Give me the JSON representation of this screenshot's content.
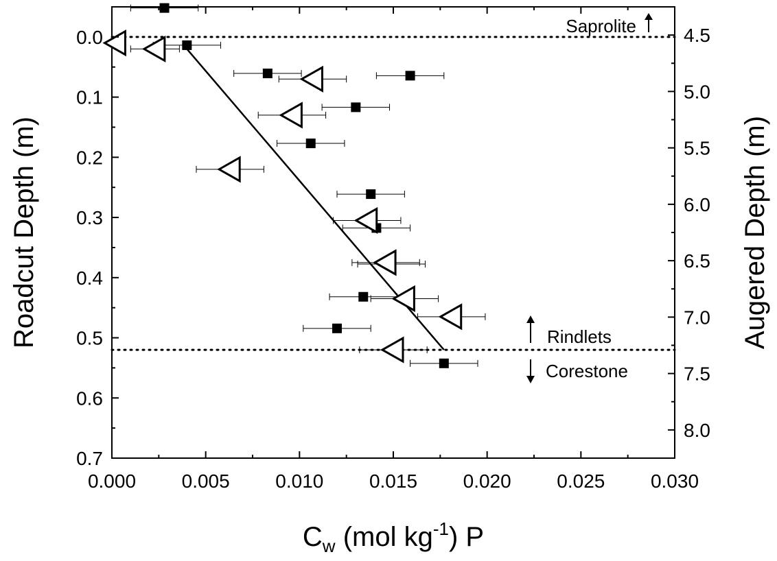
{
  "chart_data": {
    "type": "scatter",
    "xlabel": {
      "main": "C",
      "sub": "w",
      "mid": " (mol kg",
      "sup": "-1",
      "end": ") P"
    },
    "ylabel": "Roadcut Depth (m)",
    "y2label": "Augered Depth (m)",
    "xlim": [
      0.0,
      0.03
    ],
    "ylim": [
      0.7,
      -0.05
    ],
    "y2lim": [
      8.25,
      4.25
    ],
    "x_ticks": [
      "0.000",
      "0.005",
      "0.010",
      "0.015",
      "0.020",
      "0.025",
      "0.030"
    ],
    "y_ticks": [
      "0.0",
      "0.1",
      "0.2",
      "0.3",
      "0.4",
      "0.5",
      "0.6",
      "0.7"
    ],
    "y2_ticks": [
      "4.5",
      "5.0",
      "5.5",
      "6.0",
      "6.5",
      "7.0",
      "7.5",
      "8.0"
    ],
    "grid": false,
    "series": [
      {
        "marker": "filled-square",
        "axis": "augered",
        "points": [
          {
            "x": 0.0028,
            "y": 4.26,
            "xerr": 0.0018
          },
          {
            "x": 0.004,
            "y": 4.59,
            "xerr": 0.0018
          },
          {
            "x": 0.0083,
            "y": 4.84,
            "xerr": 0.0018
          },
          {
            "x": 0.0159,
            "y": 4.86,
            "xerr": 0.0018
          },
          {
            "x": 0.013,
            "y": 5.14,
            "xerr": 0.0018
          },
          {
            "x": 0.0106,
            "y": 5.46,
            "xerr": 0.0018
          },
          {
            "x": 0.0138,
            "y": 5.91,
            "xerr": 0.0018
          },
          {
            "x": 0.0141,
            "y": 6.21,
            "xerr": 0.0018
          },
          {
            "x": 0.0149,
            "y": 6.53,
            "xerr": 0.0018
          },
          {
            "x": 0.0134,
            "y": 6.82,
            "xerr": 0.0018
          },
          {
            "x": 0.012,
            "y": 7.1,
            "xerr": 0.0018
          },
          {
            "x": 0.0177,
            "y": 7.41,
            "xerr": 0.0018
          }
        ]
      },
      {
        "marker": "open-triangle-left",
        "axis": "roadcut",
        "points": [
          {
            "x": 0.0002,
            "y": 0.01,
            "xerr": 0.0
          },
          {
            "x": 0.0023,
            "y": 0.02,
            "xerr": 0.0013
          },
          {
            "x": 0.0107,
            "y": 0.07,
            "xerr": 0.0018
          },
          {
            "x": 0.0096,
            "y": 0.13,
            "xerr": 0.0018
          },
          {
            "x": 0.0063,
            "y": 0.22,
            "xerr": 0.0018
          },
          {
            "x": 0.0136,
            "y": 0.305,
            "xerr": 0.0018
          },
          {
            "x": 0.0146,
            "y": 0.375,
            "xerr": 0.0018
          },
          {
            "x": 0.0156,
            "y": 0.435,
            "xerr": 0.0018
          },
          {
            "x": 0.0181,
            "y": 0.465,
            "xerr": 0.0018
          },
          {
            "x": 0.015,
            "y": 0.52,
            "xerr": 0.0018
          }
        ]
      }
    ],
    "fit_line": {
      "x1": 0.004,
      "y1": 0.02,
      "x2": 0.0177,
      "y2": 0.52
    },
    "reference_lines": [
      {
        "y": 0.0,
        "style": "dotted"
      },
      {
        "y": 0.52,
        "style": "dotted"
      }
    ],
    "annotations": {
      "saprolite": "Saprolite",
      "rindlets": "Rindlets",
      "corestone": "Corestone"
    }
  }
}
